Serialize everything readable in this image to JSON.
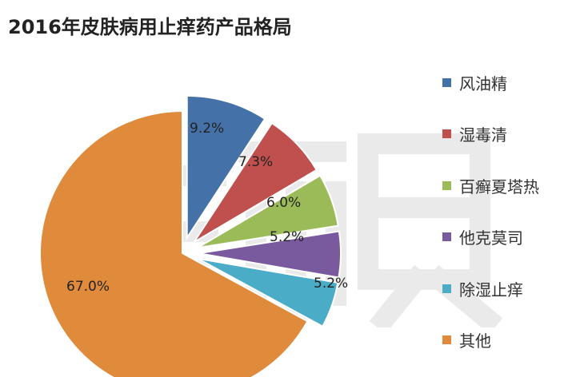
{
  "title": "2016年皮肤病用止痒药产品格局",
  "watermark_text": "新康界",
  "chart_data": {
    "type": "pie",
    "title": "2016年皮肤病用止痒药产品格局",
    "legend_position": "right",
    "series": [
      {
        "name": "风油精",
        "value": 9.2,
        "label": "9.2%",
        "color": "#4472a8",
        "exploded": true
      },
      {
        "name": "湿毒清",
        "value": 7.3,
        "label": "7.3%",
        "color": "#c0504d",
        "exploded": true
      },
      {
        "name": "百癣夏塔热",
        "value": 6.0,
        "label": "6.0%",
        "color": "#9bbb59",
        "exploded": true
      },
      {
        "name": "他克莫司",
        "value": 5.2,
        "label": "5.2%",
        "color": "#7a5a9e",
        "exploded": true
      },
      {
        "name": "除湿止痒",
        "value": 5.2,
        "label": "5.2%",
        "color": "#4aacc6",
        "exploded": true
      },
      {
        "name": "其他",
        "value": 67.0,
        "label": "67.0%",
        "color": "#e08a3c",
        "exploded": false
      }
    ]
  }
}
